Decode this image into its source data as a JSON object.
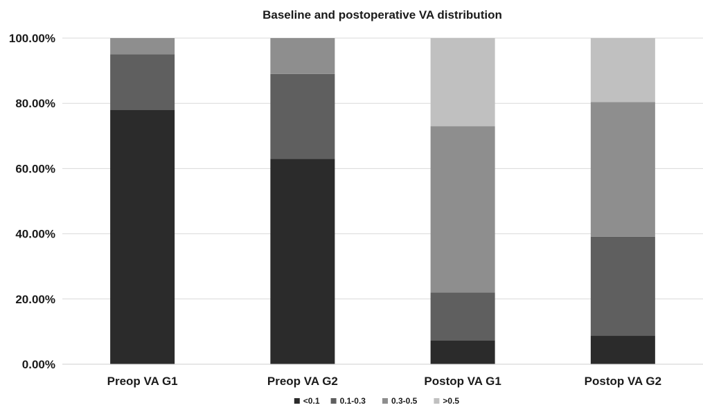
{
  "chart_data": {
    "type": "bar",
    "stacked": true,
    "title": "Baseline and postoperative VA distribution",
    "xlabel": "",
    "ylabel": "",
    "ylim": [
      0,
      100
    ],
    "y_ticks": [
      "0.00%",
      "20.00%",
      "40.00%",
      "60.00%",
      "80.00%",
      "100.00%"
    ],
    "y_tick_values": [
      0,
      20,
      40,
      60,
      80,
      100
    ],
    "grid": true,
    "legend_position": "bottom",
    "categories": [
      "Preop VA G1",
      "Preop VA G2",
      "Postop VA G1",
      "Postop VA G2"
    ],
    "series": [
      {
        "name": "<0.1",
        "color": "#2b2b2b",
        "values": [
          78,
          63,
          7.3,
          8.7
        ]
      },
      {
        "name": "0.1-0.3",
        "color": "#5f5f5f",
        "values": [
          17,
          26,
          14.7,
          30.4
        ]
      },
      {
        "name": "0.3-0.5",
        "color": "#8e8e8e",
        "values": [
          5,
          11,
          51,
          41.3
        ]
      },
      {
        "name": ">0.5",
        "color": "#c0c0c0",
        "values": [
          0,
          0,
          27,
          19.6
        ]
      }
    ]
  }
}
